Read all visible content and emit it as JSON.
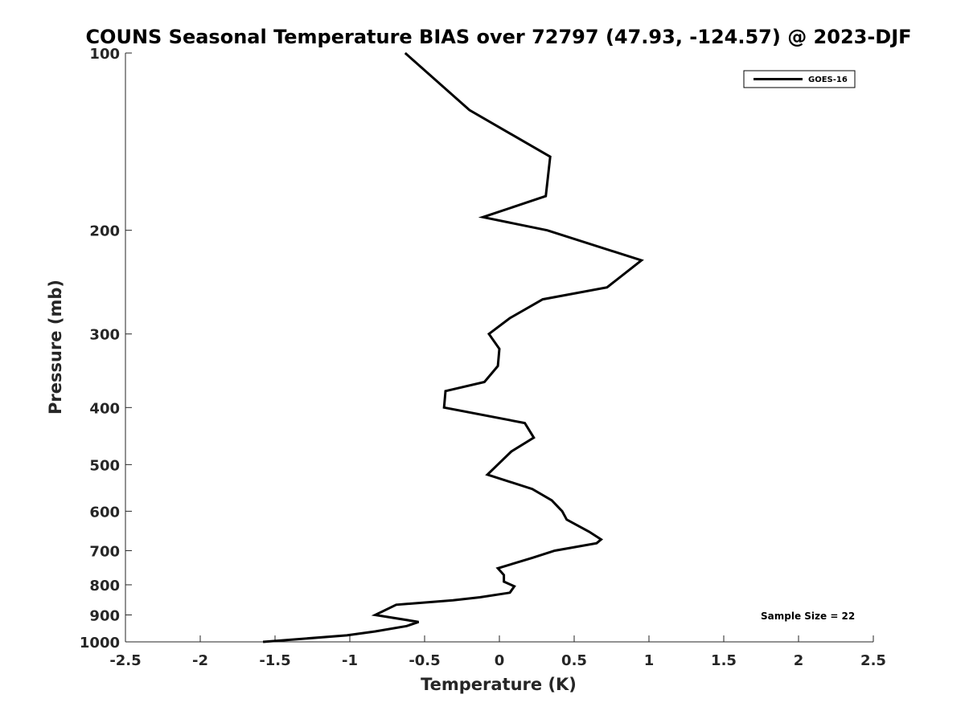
{
  "chart_data": {
    "type": "line",
    "title": "COUNS Seasonal Temperature BIAS over 72797 (47.93, -124.57) @ 2023-DJF",
    "xlabel": "Temperature (K)",
    "ylabel": "Pressure (mb)",
    "xlim": [
      -2.5,
      2.5
    ],
    "ylim": [
      100,
      1000
    ],
    "y_scale": "log",
    "y_reversed": true,
    "grid": false,
    "legend_position": "top-right",
    "x_ticks": [
      -2.5,
      -2,
      -1.5,
      -1,
      -0.5,
      0,
      0.5,
      1,
      1.5,
      2,
      2.5
    ],
    "x_tick_labels": [
      "-2.5",
      "-2",
      "-1.5",
      "-1",
      "-0.5",
      "0",
      "0.5",
      "1",
      "1.5",
      "2",
      "2.5"
    ],
    "y_ticks": [
      100,
      200,
      300,
      400,
      500,
      600,
      700,
      800,
      900,
      1000
    ],
    "y_tick_labels": [
      "100",
      "200",
      "300",
      "400",
      "500",
      "600",
      "700",
      "800",
      "900",
      "1000"
    ],
    "series": [
      {
        "name": "GOES-16",
        "color": "#000000",
        "points": [
          {
            "x": -0.63,
            "y": 100
          },
          {
            "x": -0.2,
            "y": 125
          },
          {
            "x": 0.34,
            "y": 150
          },
          {
            "x": 0.31,
            "y": 175
          },
          {
            "x": -0.11,
            "y": 190
          },
          {
            "x": 0.32,
            "y": 200
          },
          {
            "x": 0.95,
            "y": 225
          },
          {
            "x": 0.72,
            "y": 250
          },
          {
            "x": 0.29,
            "y": 262
          },
          {
            "x": 0.07,
            "y": 282
          },
          {
            "x": -0.07,
            "y": 300
          },
          {
            "x": 0.0,
            "y": 318
          },
          {
            "x": -0.01,
            "y": 340
          },
          {
            "x": -0.1,
            "y": 362
          },
          {
            "x": -0.36,
            "y": 375
          },
          {
            "x": -0.37,
            "y": 400
          },
          {
            "x": 0.17,
            "y": 425
          },
          {
            "x": 0.23,
            "y": 450
          },
          {
            "x": 0.08,
            "y": 475
          },
          {
            "x": -0.08,
            "y": 520
          },
          {
            "x": 0.22,
            "y": 550
          },
          {
            "x": 0.35,
            "y": 575
          },
          {
            "x": 0.42,
            "y": 600
          },
          {
            "x": 0.45,
            "y": 620
          },
          {
            "x": 0.6,
            "y": 650
          },
          {
            "x": 0.68,
            "y": 670
          },
          {
            "x": 0.65,
            "y": 680
          },
          {
            "x": 0.37,
            "y": 700
          },
          {
            "x": 0.22,
            "y": 720
          },
          {
            "x": -0.01,
            "y": 750
          },
          {
            "x": 0.03,
            "y": 770
          },
          {
            "x": 0.03,
            "y": 790
          },
          {
            "x": 0.1,
            "y": 805
          },
          {
            "x": 0.07,
            "y": 825
          },
          {
            "x": -0.13,
            "y": 840
          },
          {
            "x": -0.31,
            "y": 850
          },
          {
            "x": -0.69,
            "y": 865
          },
          {
            "x": -0.83,
            "y": 900
          },
          {
            "x": -0.54,
            "y": 925
          },
          {
            "x": -0.62,
            "y": 940
          },
          {
            "x": -0.83,
            "y": 960
          },
          {
            "x": -1.02,
            "y": 975
          },
          {
            "x": -1.58,
            "y": 1000
          }
        ]
      }
    ],
    "annotation": "Sample Size = 22"
  }
}
